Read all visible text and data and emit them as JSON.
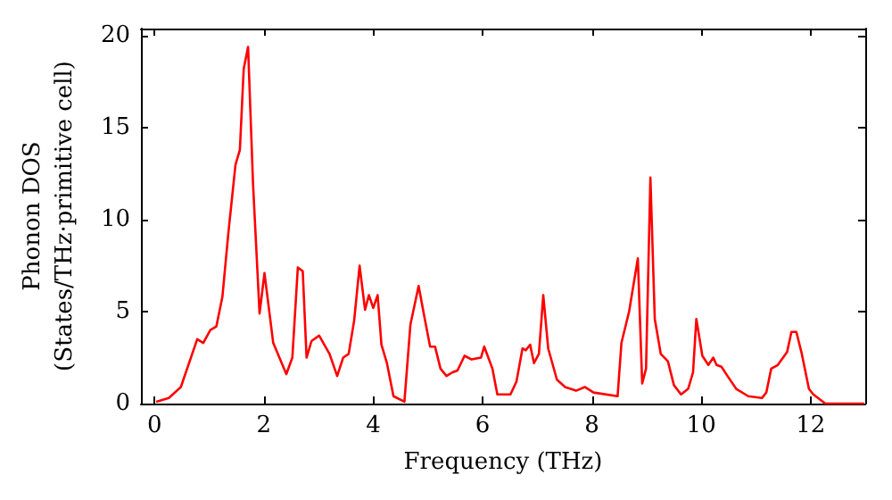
{
  "chart_data": {
    "type": "line",
    "xlabel": "Frequency (THz)",
    "ylabel": "Phonon DOS\n(States/THz·primitive cell)",
    "xlim": [
      -0.25,
      13
    ],
    "xticks": [
      0,
      2,
      4,
      6,
      8,
      10,
      12
    ],
    "ylim": [
      0,
      20.4
    ],
    "yticks": [
      0,
      5,
      10,
      15,
      20
    ],
    "marker": "none",
    "line_style": "solid",
    "series": [
      {
        "color": "#ff0000",
        "x": [
          0.03,
          0.26,
          0.48,
          0.78,
          0.89,
          1.02,
          1.13,
          1.24,
          1.35,
          1.48,
          1.56,
          1.63,
          1.71,
          1.8,
          1.92,
          2.01,
          2.17,
          2.41,
          2.52,
          2.62,
          2.71,
          2.78,
          2.87,
          3.01,
          3.2,
          3.34,
          3.45,
          3.55,
          3.65,
          3.75,
          3.85,
          3.92,
          4.0,
          4.08,
          4.15,
          4.25,
          4.37,
          4.57,
          4.68,
          4.83,
          4.93,
          5.04,
          5.13,
          5.23,
          5.34,
          5.45,
          5.54,
          5.67,
          5.8,
          5.97,
          6.03,
          6.18,
          6.27,
          6.51,
          6.62,
          6.73,
          6.79,
          6.87,
          6.94,
          7.03,
          7.11,
          7.2,
          7.36,
          7.51,
          7.71,
          7.87,
          8.03,
          8.47,
          8.54,
          8.68,
          8.84,
          8.92,
          8.99,
          9.07,
          9.15,
          9.26,
          9.39,
          9.5,
          9.63,
          9.76,
          9.85,
          9.91,
          10.02,
          10.13,
          10.22,
          10.28,
          10.37,
          10.48,
          10.64,
          10.86,
          11.11,
          11.19,
          11.28,
          11.4,
          11.57,
          11.65,
          11.74,
          11.84,
          11.97,
          12.05,
          12.27,
          12.98
        ],
        "values": [
          0.1,
          0.3,
          0.9,
          3.5,
          3.3,
          4.0,
          4.2,
          5.8,
          9.3,
          13.0,
          13.8,
          18.2,
          19.4,
          12.0,
          4.9,
          7.1,
          3.3,
          1.6,
          2.5,
          7.4,
          7.2,
          2.5,
          3.4,
          3.7,
          2.7,
          1.5,
          2.5,
          2.7,
          4.5,
          7.5,
          5.1,
          5.9,
          5.2,
          5.9,
          3.2,
          2.2,
          0.4,
          0.1,
          4.3,
          6.4,
          4.8,
          3.1,
          3.1,
          1.9,
          1.5,
          1.7,
          1.8,
          2.6,
          2.4,
          2.5,
          3.1,
          1.9,
          0.5,
          0.5,
          1.2,
          3.0,
          2.9,
          3.2,
          2.2,
          2.7,
          5.9,
          3.0,
          1.3,
          0.9,
          0.7,
          0.9,
          0.6,
          0.4,
          3.3,
          5.0,
          7.9,
          1.1,
          1.9,
          12.3,
          4.6,
          2.7,
          2.3,
          1.0,
          0.5,
          0.8,
          1.7,
          4.6,
          2.6,
          2.1,
          2.5,
          2.1,
          2.0,
          1.5,
          0.8,
          0.4,
          0.3,
          0.6,
          1.9,
          2.1,
          2.8,
          3.9,
          3.9,
          2.7,
          0.8,
          0.5,
          0,
          0
        ]
      }
    ]
  }
}
